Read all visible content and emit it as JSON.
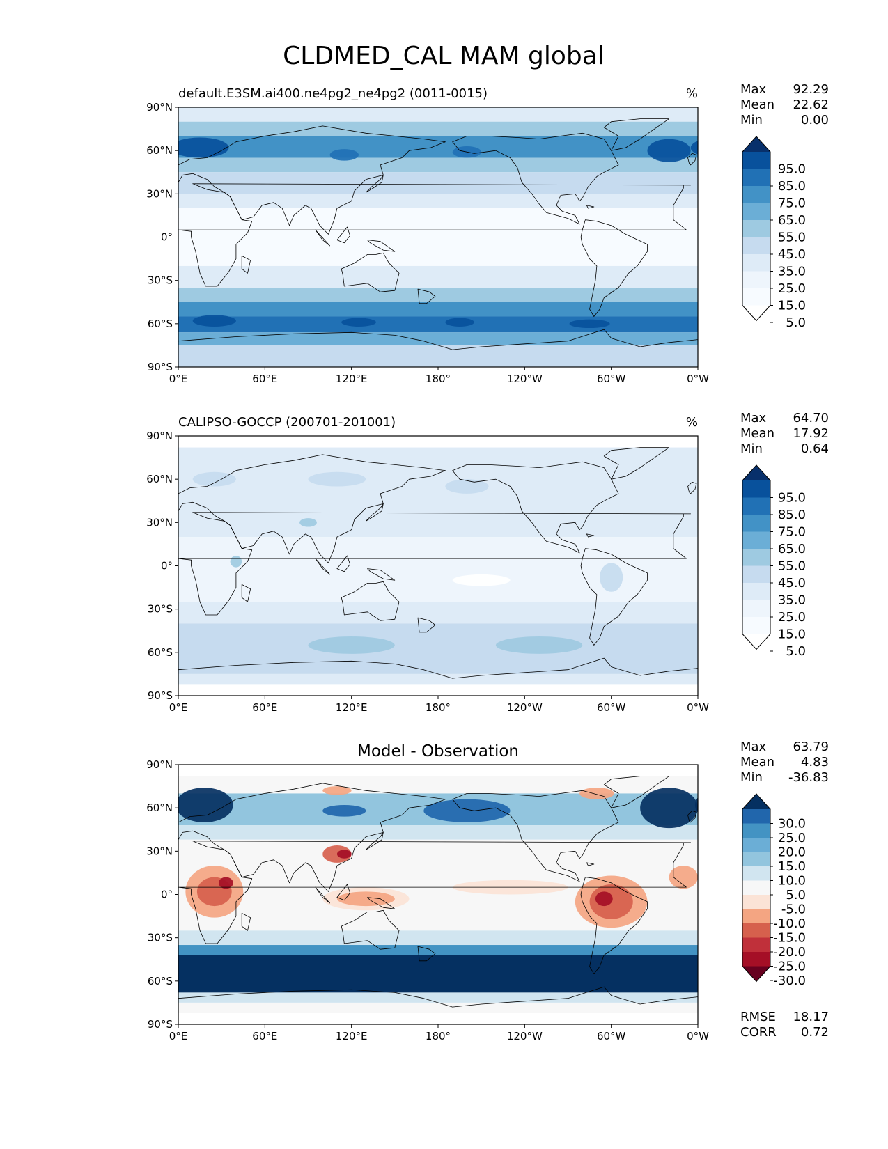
{
  "title": "CLDMED_CAL MAM global",
  "axes": {
    "lat_ticks": [
      "90°N",
      "60°N",
      "30°N",
      "0°",
      "30°S",
      "60°S",
      "90°S"
    ],
    "lon_ticks": [
      "0°E",
      "60°E",
      "120°E",
      "180°",
      "120°W",
      "60°W",
      "0°W"
    ]
  },
  "panels": [
    {
      "id": "model",
      "left_title": "default.E3SM.ai400.ne4pg2_ne4pg2 (0011-0015)",
      "right_title": "%",
      "center_title": "",
      "stats": [
        {
          "label": "Max",
          "value": "92.29"
        },
        {
          "label": "Mean",
          "value": "22.62"
        },
        {
          "label": "Min",
          "value": "0.00"
        }
      ],
      "bottom_stats": [],
      "colorbar": {
        "labels": [
          "95.0",
          "85.0",
          "75.0",
          "65.0",
          "55.0",
          "45.0",
          "35.0",
          "25.0",
          "15.0",
          "5.0"
        ],
        "colors": [
          "#08306b",
          "#08519c",
          "#2171b5",
          "#4292c6",
          "#6baed6",
          "#9ecae1",
          "#c6dbef",
          "#deebf7",
          "#eef5fc",
          "#f7fbff",
          "#ffffff"
        ]
      },
      "bands": [
        {
          "lat": [
            90,
            80
          ],
          "c": "#deebf7"
        },
        {
          "lat": [
            80,
            70
          ],
          "c": "#9ecae1"
        },
        {
          "lat": [
            70,
            55
          ],
          "c": "#4292c6"
        },
        {
          "lat": [
            55,
            45
          ],
          "c": "#9ecae1"
        },
        {
          "lat": [
            45,
            30
          ],
          "c": "#c6dbef"
        },
        {
          "lat": [
            30,
            20
          ],
          "c": "#deebf7"
        },
        {
          "lat": [
            20,
            -20
          ],
          "c": "#f7fbff"
        },
        {
          "lat": [
            -20,
            -35
          ],
          "c": "#deebf7"
        },
        {
          "lat": [
            -35,
            -45
          ],
          "c": "#9ecae1"
        },
        {
          "lat": [
            -45,
            -55
          ],
          "c": "#4292c6"
        },
        {
          "lat": [
            -55,
            -66
          ],
          "c": "#2171b5"
        },
        {
          "lat": [
            -66,
            -75
          ],
          "c": "#6baed6"
        },
        {
          "lat": [
            -75,
            -90
          ],
          "c": "#c6dbef"
        }
      ],
      "blobs": [
        {
          "lon": 15,
          "lat": 62,
          "rx": 20,
          "ry": 7,
          "c": "#08519c"
        },
        {
          "lon": 340,
          "lat": 60,
          "rx": 15,
          "ry": 8,
          "c": "#08519c"
        },
        {
          "lon": 115,
          "lat": 57,
          "rx": 10,
          "ry": 4,
          "c": "#2171b5"
        },
        {
          "lon": 200,
          "lat": 59,
          "rx": 10,
          "ry": 4,
          "c": "#2171b5"
        },
        {
          "lon": 25,
          "lat": -58,
          "rx": 15,
          "ry": 4,
          "c": "#08519c"
        },
        {
          "lon": 125,
          "lat": -59,
          "rx": 12,
          "ry": 3,
          "c": "#08519c"
        },
        {
          "lon": 195,
          "lat": -59,
          "rx": 10,
          "ry": 3,
          "c": "#08519c"
        },
        {
          "lon": 285,
          "lat": -60,
          "rx": 14,
          "ry": 3,
          "c": "#08519c"
        }
      ]
    },
    {
      "id": "obs",
      "left_title": "CALIPSO-GOCCP (200701-201001)",
      "right_title": "%",
      "center_title": "",
      "stats": [
        {
          "label": "Max",
          "value": "64.70"
        },
        {
          "label": "Mean",
          "value": "17.92"
        },
        {
          "label": "Min",
          "value": "0.64"
        }
      ],
      "bottom_stats": [],
      "colorbar": {
        "labels": [
          "95.0",
          "85.0",
          "75.0",
          "65.0",
          "55.0",
          "45.0",
          "35.0",
          "25.0",
          "15.0",
          "5.0"
        ],
        "colors": [
          "#08306b",
          "#08519c",
          "#2171b5",
          "#4292c6",
          "#6baed6",
          "#9ecae1",
          "#c6dbef",
          "#deebf7",
          "#eef5fc",
          "#f7fbff",
          "#ffffff"
        ]
      },
      "bands": [
        {
          "lat": [
            90,
            82
          ],
          "c": "#ffffff"
        },
        {
          "lat": [
            82,
            40
          ],
          "c": "#deebf7"
        },
        {
          "lat": [
            40,
            20
          ],
          "c": "#deebf7"
        },
        {
          "lat": [
            20,
            -25
          ],
          "c": "#eef5fc"
        },
        {
          "lat": [
            -25,
            -40
          ],
          "c": "#deebf7"
        },
        {
          "lat": [
            -40,
            -75
          ],
          "c": "#c6dbef"
        },
        {
          "lat": [
            -75,
            -82
          ],
          "c": "#deebf7"
        },
        {
          "lat": [
            -82,
            -90
          ],
          "c": "#ffffff"
        }
      ],
      "blobs": [
        {
          "lon": 25,
          "lat": 60,
          "rx": 15,
          "ry": 5,
          "c": "#c6dbef"
        },
        {
          "lon": 200,
          "lat": 55,
          "rx": 15,
          "ry": 5,
          "c": "#c6dbef"
        },
        {
          "lon": 110,
          "lat": 60,
          "rx": 20,
          "ry": 5,
          "c": "#c6dbef"
        },
        {
          "lon": 90,
          "lat": 30,
          "rx": 6,
          "ry": 3,
          "c": "#9ecae1"
        },
        {
          "lon": 300,
          "lat": -8,
          "rx": 8,
          "ry": 10,
          "c": "#c6dbef"
        },
        {
          "lon": 40,
          "lat": 3,
          "rx": 4,
          "ry": 4,
          "c": "#9ecae1"
        },
        {
          "lon": 120,
          "lat": -55,
          "rx": 30,
          "ry": 6,
          "c": "#9ecae1"
        },
        {
          "lon": 250,
          "lat": -55,
          "rx": 30,
          "ry": 6,
          "c": "#9ecae1"
        },
        {
          "lon": 210,
          "lat": -10,
          "rx": 20,
          "ry": 4,
          "c": "#ffffff"
        }
      ]
    },
    {
      "id": "diff",
      "left_title": "",
      "right_title": "",
      "center_title": "Model - Observation",
      "stats": [
        {
          "label": "Max",
          "value": "63.79"
        },
        {
          "label": "Mean",
          "value": "4.83"
        },
        {
          "label": "Min",
          "value": "-36.83"
        }
      ],
      "bottom_stats": [
        {
          "label": "RMSE",
          "value": "18.17"
        },
        {
          "label": "CORR",
          "value": "0.72"
        }
      ],
      "colorbar": {
        "labels": [
          "30.0",
          "25.0",
          "20.0",
          "15.0",
          "10.0",
          "5.0",
          "-5.0",
          "-10.0",
          "-15.0",
          "-20.0",
          "-25.0",
          "-30.0"
        ],
        "colors": [
          "#053061",
          "#2166ac",
          "#4393c3",
          "#6baed6",
          "#92c5de",
          "#d1e5f0",
          "#f7f7f7",
          "#fbe3d6",
          "#f4a582",
          "#d6604d",
          "#c0303a",
          "#a50f26",
          "#67001f"
        ]
      },
      "bands": [
        {
          "lat": [
            90,
            82
          ],
          "c": "#ffffff"
        },
        {
          "lat": [
            82,
            70
          ],
          "c": "#f7f7f7"
        },
        {
          "lat": [
            70,
            48
          ],
          "c": "#92c5de"
        },
        {
          "lat": [
            48,
            38
          ],
          "c": "#d1e5f0"
        },
        {
          "lat": [
            38,
            -25
          ],
          "c": "#f7f7f7"
        },
        {
          "lat": [
            -25,
            -35
          ],
          "c": "#d1e5f0"
        },
        {
          "lat": [
            -35,
            -42
          ],
          "c": "#4393c3"
        },
        {
          "lat": [
            -42,
            -68
          ],
          "c": "#053061"
        },
        {
          "lat": [
            -68,
            -75
          ],
          "c": "#d1e5f0"
        },
        {
          "lat": [
            -75,
            -82
          ],
          "c": "#f7f7f7"
        },
        {
          "lat": [
            -82,
            -90
          ],
          "c": "#ffffff"
        }
      ],
      "blobs": [
        {
          "lon": 18,
          "lat": 62,
          "rx": 20,
          "ry": 12,
          "c": "#053061"
        },
        {
          "lon": 340,
          "lat": 60,
          "rx": 20,
          "ry": 14,
          "c": "#053061"
        },
        {
          "lon": 200,
          "lat": 58,
          "rx": 30,
          "ry": 8,
          "c": "#2166ac"
        },
        {
          "lon": 115,
          "lat": 58,
          "rx": 15,
          "ry": 4,
          "c": "#2166ac"
        },
        {
          "lon": 110,
          "lat": 72,
          "rx": 10,
          "ry": 3,
          "c": "#f4a582"
        },
        {
          "lon": 290,
          "lat": 70,
          "rx": 12,
          "ry": 4,
          "c": "#f4a582"
        },
        {
          "lon": 25,
          "lat": 2,
          "rx": 20,
          "ry": 18,
          "c": "#f4a582"
        },
        {
          "lon": 25,
          "lat": 2,
          "rx": 12,
          "ry": 10,
          "c": "#d6604d"
        },
        {
          "lon": 33,
          "lat": 8,
          "rx": 5,
          "ry": 4,
          "c": "#a50f26"
        },
        {
          "lon": 110,
          "lat": 28,
          "rx": 10,
          "ry": 6,
          "c": "#d6604d"
        },
        {
          "lon": 115,
          "lat": 28,
          "rx": 5,
          "ry": 3,
          "c": "#a50f26"
        },
        {
          "lon": 130,
          "lat": -3,
          "rx": 30,
          "ry": 8,
          "c": "#fbe3d6"
        },
        {
          "lon": 130,
          "lat": -3,
          "rx": 20,
          "ry": 5,
          "c": "#f4a582"
        },
        {
          "lon": 300,
          "lat": -5,
          "rx": 25,
          "ry": 18,
          "c": "#f4a582"
        },
        {
          "lon": 300,
          "lat": -5,
          "rx": 15,
          "ry": 12,
          "c": "#d6604d"
        },
        {
          "lon": 295,
          "lat": -3,
          "rx": 6,
          "ry": 5,
          "c": "#a50f26"
        },
        {
          "lon": 350,
          "lat": 12,
          "rx": 10,
          "ry": 8,
          "c": "#f4a582"
        },
        {
          "lon": 230,
          "lat": 5,
          "rx": 40,
          "ry": 5,
          "c": "#fbe3d6"
        }
      ]
    }
  ],
  "style": {
    "coast_color": "#000000"
  }
}
